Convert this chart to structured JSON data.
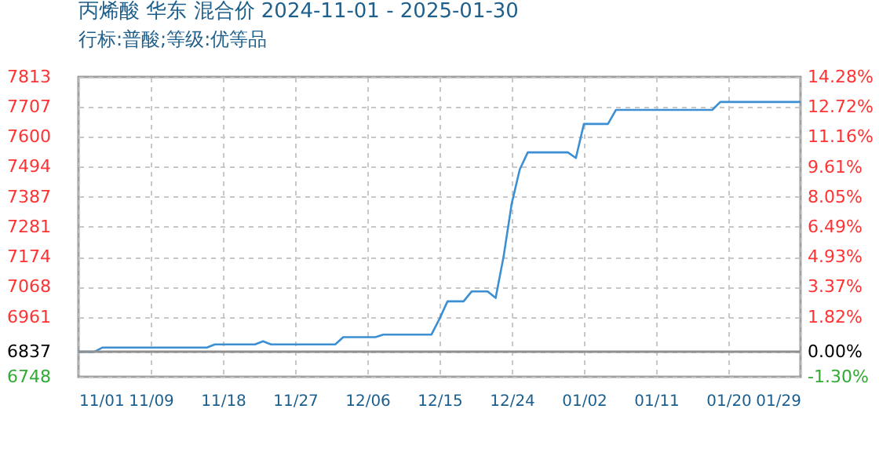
{
  "chart_data": {
    "type": "line",
    "title": "丙烯酸 华东 混合价 2024-11-01 - 2025-01-30",
    "subtitle": "行标:普酸;等级:优等品",
    "x": [
      "2024-11-01",
      "2024-11-03",
      "2024-11-04",
      "2024-11-17",
      "2024-11-18",
      "2024-11-23",
      "2024-11-24",
      "2024-11-25",
      "2024-12-03",
      "2024-12-04",
      "2024-12-08",
      "2024-12-09",
      "2024-12-15",
      "2024-12-16",
      "2024-12-17",
      "2024-12-19",
      "2024-12-20",
      "2024-12-22",
      "2024-12-23",
      "2024-12-24",
      "2024-12-25",
      "2024-12-26",
      "2024-12-27",
      "2025-01-01",
      "2025-01-02",
      "2025-01-03",
      "2025-01-06",
      "2025-01-07",
      "2025-01-19",
      "2025-01-20",
      "2025-01-30"
    ],
    "series": [
      {
        "color": "#3b8fd2",
        "values": [
          6837,
          6837,
          6852,
          6852,
          6863,
          6863,
          6874,
          6863,
          6863,
          6889,
          6889,
          6898,
          6898,
          6954,
          7016,
          7016,
          7051,
          7051,
          7028,
          7177,
          7363,
          7484,
          7545,
          7545,
          7525,
          7646,
          7646,
          7696,
          7696,
          7724,
          7724
        ]
      }
    ],
    "xlim": [
      "2024-11-01",
      "2025-01-30"
    ],
    "xticks": [
      {
        "value": "2024-11-01",
        "label": "11/01"
      },
      {
        "value": "2024-11-10",
        "label": "11/09"
      },
      {
        "value": "2024-11-19",
        "label": "11/18"
      },
      {
        "value": "2024-11-28",
        "label": "11/27"
      },
      {
        "value": "2024-12-07",
        "label": "12/06"
      },
      {
        "value": "2024-12-16",
        "label": "12/15"
      },
      {
        "value": "2024-12-25",
        "label": "12/24"
      },
      {
        "value": "2025-01-03",
        "label": "01/02"
      },
      {
        "value": "2025-01-12",
        "label": "01/11"
      },
      {
        "value": "2025-01-21",
        "label": "01/20"
      },
      {
        "value": "2025-01-30",
        "label": "01/29"
      }
    ],
    "ylim": [
      6748,
      7813
    ],
    "yticks": [
      6748,
      6837,
      6961,
      7068,
      7174,
      7281,
      7387,
      7494,
      7600,
      7707,
      7813
    ],
    "y2lim": [
      -1.3,
      14.28
    ],
    "y2ticks": [
      {
        "value": -1.3,
        "label": "-1.30%"
      },
      {
        "value": 0,
        "label": "0.00%"
      },
      {
        "value": 1.82,
        "label": "1.82%"
      },
      {
        "value": 3.37,
        "label": "3.37%"
      },
      {
        "value": 4.93,
        "label": "4.93%"
      },
      {
        "value": 6.49,
        "label": "6.49%"
      },
      {
        "value": 8.05,
        "label": "8.05%"
      },
      {
        "value": 9.61,
        "label": "9.61%"
      },
      {
        "value": 11.16,
        "label": "11.16%"
      },
      {
        "value": 12.72,
        "label": "12.72%"
      },
      {
        "value": 14.28,
        "label": "14.28%"
      }
    ],
    "ref_lines": [
      {
        "axis": "y",
        "value": 6837,
        "color": "#909090",
        "line_style": "solid"
      }
    ],
    "grid": true,
    "line_style": "solid",
    "marker": "none"
  }
}
